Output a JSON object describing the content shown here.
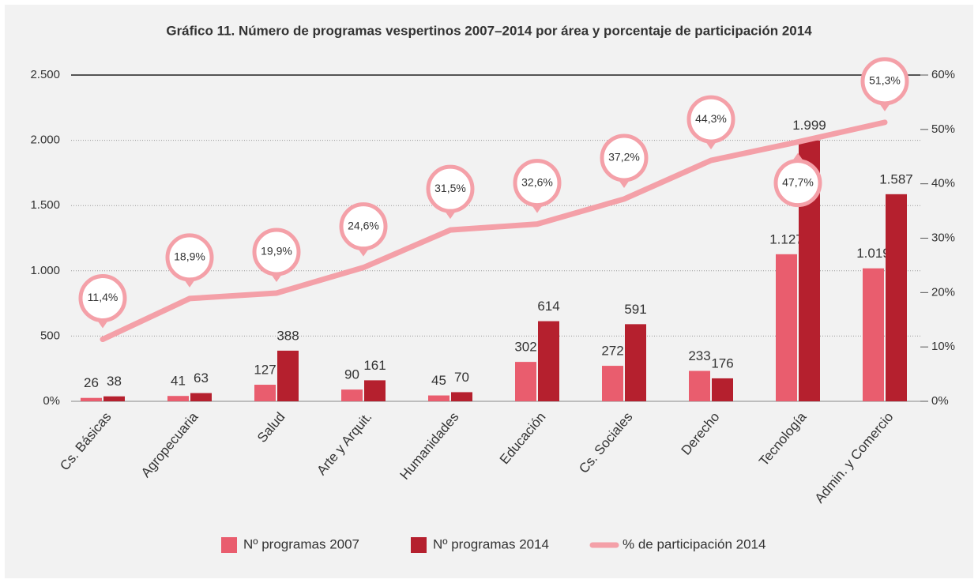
{
  "chart_data": {
    "type": "bar_line",
    "title": "Gráfico 11. Número de programas vespertinos 2007–2014 por área y porcentaje de participación 2014",
    "categories": [
      "Cs. Básicas",
      "Agropecuaria",
      "Salud",
      "Arte y Arquit.",
      "Humanidades",
      "Educación",
      "Cs. Sociales",
      "Derecho",
      "Tecnología",
      "Admin. y Comercio"
    ],
    "series": [
      {
        "name": "Nº programas 2007",
        "color": "#e95d6e",
        "values": [
          26,
          41,
          127,
          90,
          45,
          302,
          272,
          233,
          1127,
          1019
        ],
        "value_labels": [
          "26",
          "41",
          "127",
          "90",
          "45",
          "302",
          "272",
          "233",
          "1.127",
          "1.019"
        ]
      },
      {
        "name": "Nº programas 2014",
        "color": "#b5202e",
        "values": [
          38,
          63,
          388,
          161,
          70,
          614,
          591,
          176,
          1999,
          1587
        ],
        "value_labels": [
          "38",
          "63",
          "388",
          "161",
          "70",
          "614",
          "591",
          "176",
          "1.999",
          "1.587"
        ]
      },
      {
        "name": "% de participación 2014",
        "color": "#f4a0a8",
        "axis": "y2",
        "values": [
          11.4,
          18.9,
          19.9,
          24.6,
          31.5,
          32.6,
          37.2,
          44.3,
          47.7,
          51.3
        ],
        "value_labels": [
          "11,4%",
          "18,9%",
          "19,9%",
          "24,6%",
          "31,5%",
          "32,6%",
          "37,2%",
          "44,3%",
          "47,7%",
          "51,3%"
        ]
      }
    ],
    "ylim": [
      0,
      2500
    ],
    "yticks": [
      {
        "value": 0,
        "label": "0%"
      },
      500,
      {
        "value": 1000,
        "label": "1.000"
      },
      {
        "value": 1500,
        "label": "1.500"
      },
      {
        "value": 2000,
        "label": "2.000"
      },
      {
        "value": 2500,
        "label": "2.500"
      }
    ],
    "y2lim": [
      0,
      60
    ],
    "y2ticks": [
      {
        "value": 0,
        "label": "0%"
      },
      {
        "value": 10,
        "label": "10%"
      },
      {
        "value": 20,
        "label": "20%"
      },
      {
        "value": 30,
        "label": "30%"
      },
      {
        "value": 40,
        "label": "40%"
      },
      {
        "value": 50,
        "label": "50%"
      },
      {
        "value": 60,
        "label": "60%"
      }
    ],
    "grid": true
  }
}
